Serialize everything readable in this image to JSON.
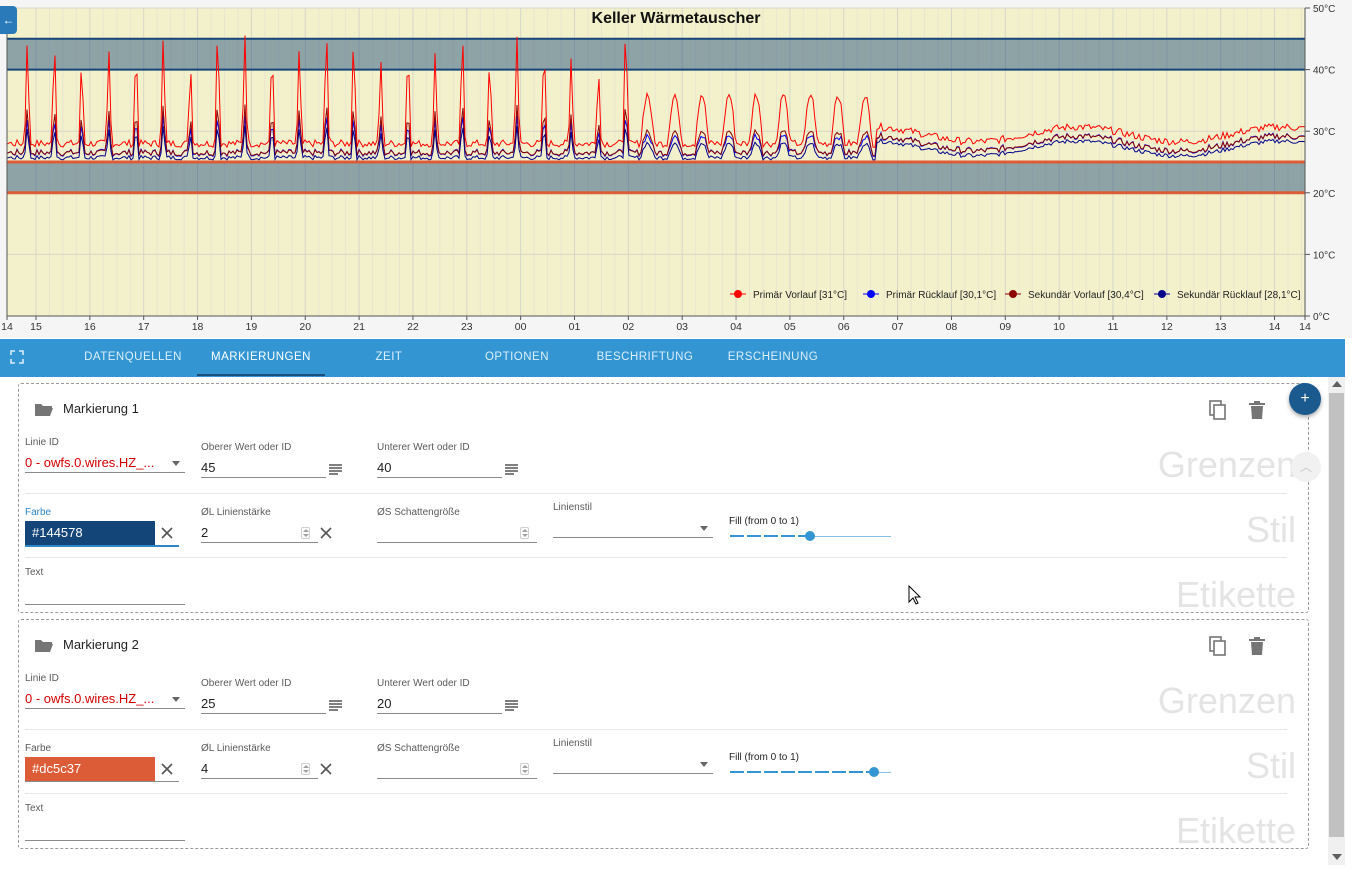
{
  "chart_data": {
    "type": "line",
    "title": "Keller Wärmetauscher",
    "x_tick_labels": [
      "14",
      "15",
      "16",
      "17",
      "18",
      "19",
      "20",
      "21",
      "22",
      "23",
      "00",
      "01",
      "02",
      "03",
      "04",
      "05",
      "06",
      "07",
      "08",
      "09",
      "10",
      "11",
      "12",
      "13",
      "14",
      "14"
    ],
    "y_tick_labels": [
      "0°C",
      "10°C",
      "20°C",
      "30°C",
      "40°C",
      "50°C"
    ],
    "ylim": [
      0,
      50
    ],
    "y_axis_position": "right",
    "grid": true,
    "legend_position": "bottom-right",
    "background_color": "#f3f1cb",
    "series": [
      {
        "name": "Primär Vorlauf [31°C]",
        "color": "#ff0000"
      },
      {
        "name": "Primär Rücklauf [30,1°C]",
        "color": "#0000ff"
      },
      {
        "name": "Sekundär Vorlauf [30,4°C]",
        "color": "#8b0000"
      },
      {
        "name": "Sekundär Rücklauf [28,1°C]",
        "color": "#00008b"
      }
    ],
    "markings": [
      {
        "upper": 45,
        "lower": 40,
        "color": "#144578"
      },
      {
        "upper": 25,
        "lower": 20,
        "color": "#dc5c37"
      }
    ]
  },
  "tabs": [
    "DATENQUELLEN",
    "MARKIERUNGEN",
    "ZEIT",
    "OPTIONEN",
    "BESCHRIFTUNG",
    "ERSCHEINUNG"
  ],
  "labels": {
    "line_id": "Linie ID",
    "upper": "Oberer Wert oder ID",
    "lower": "Unterer Wert oder ID",
    "color": "Farbe",
    "line_width": "ØL Linienstärke",
    "shadow": "ØS Schattengröße",
    "line_style": "Linienstil",
    "fill": "Fill (from 0 to 1)",
    "text": "Text",
    "section_limits": "Grenzen",
    "section_style": "Stil",
    "section_label": "Etikette"
  },
  "fab_label": "+",
  "markings": [
    {
      "title": "Markierung 1",
      "line_id": "0 - owfs.0.wires.HZ_...",
      "upper": "45",
      "lower": "40",
      "color": "#144578",
      "line_width": "2",
      "shadow": "",
      "line_style": "",
      "fill": 0.5,
      "text": ""
    },
    {
      "title": "Markierung 2",
      "line_id": "0 - owfs.0.wires.HZ_...",
      "upper": "25",
      "lower": "20",
      "color": "#dc5c37",
      "line_width": "4",
      "shadow": "",
      "line_style": "",
      "fill": 0.9,
      "text": ""
    }
  ]
}
